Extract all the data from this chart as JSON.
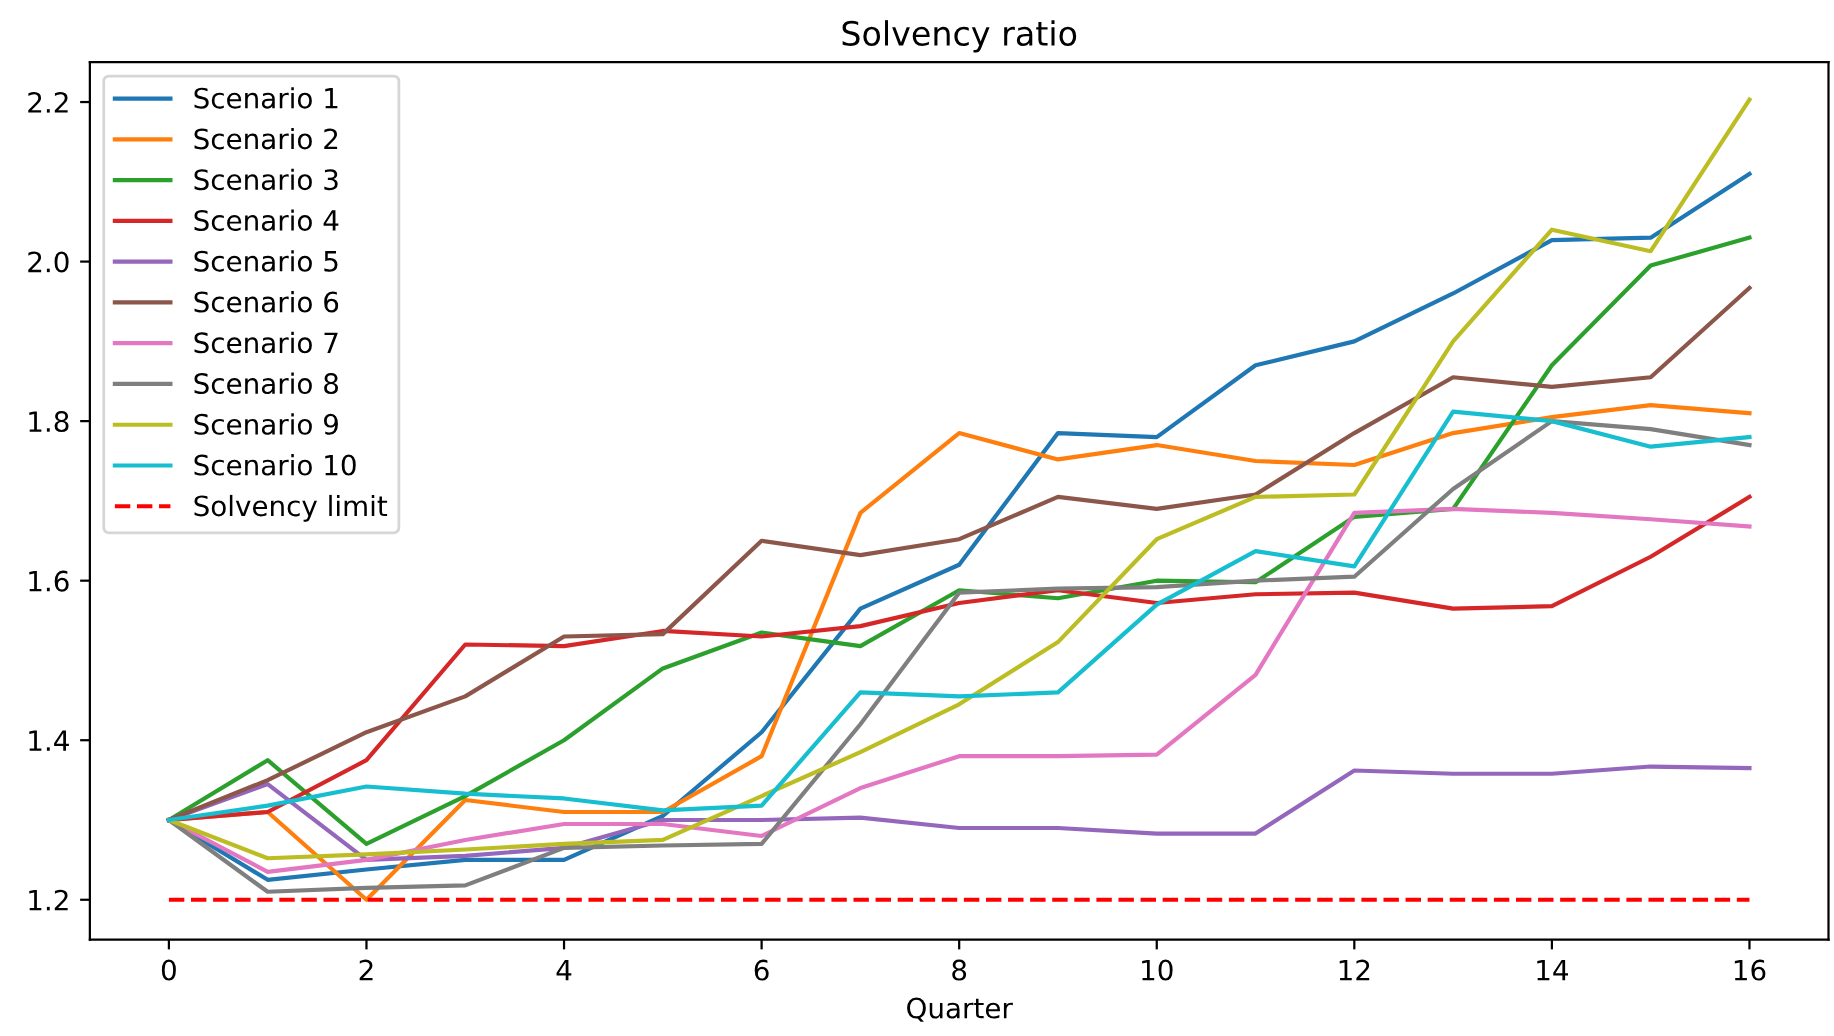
{
  "chart_data": {
    "type": "line",
    "title": "Solvency ratio",
    "xlabel": "Quarter",
    "x": [
      0,
      1,
      2,
      3,
      4,
      5,
      6,
      7,
      8,
      9,
      10,
      11,
      12,
      13,
      14,
      15,
      16
    ],
    "series": [
      {
        "name": "Scenario 1",
        "color": "#1f77b4",
        "values": [
          1.3,
          1.225,
          1.238,
          1.25,
          1.25,
          1.305,
          1.41,
          1.565,
          1.62,
          1.785,
          1.78,
          1.87,
          1.9,
          1.96,
          2.027,
          2.03,
          2.11
        ]
      },
      {
        "name": "Scenario 2",
        "color": "#ff7f0e",
        "values": [
          1.3,
          1.31,
          1.2,
          1.325,
          1.31,
          1.31,
          1.38,
          1.685,
          1.785,
          1.752,
          1.77,
          1.75,
          1.745,
          1.785,
          1.805,
          1.82,
          1.81
        ]
      },
      {
        "name": "Scenario 3",
        "color": "#2ca02c",
        "values": [
          1.3,
          1.375,
          1.27,
          1.33,
          1.4,
          1.49,
          1.535,
          1.518,
          1.588,
          1.578,
          1.6,
          1.598,
          1.68,
          1.69,
          1.87,
          1.995,
          2.03
        ]
      },
      {
        "name": "Scenario 4",
        "color": "#d62728",
        "values": [
          1.3,
          1.31,
          1.375,
          1.52,
          1.518,
          1.537,
          1.53,
          1.543,
          1.572,
          1.588,
          1.572,
          1.583,
          1.585,
          1.565,
          1.568,
          1.63,
          1.705
        ]
      },
      {
        "name": "Scenario 5",
        "color": "#9467bd",
        "values": [
          1.3,
          1.345,
          1.25,
          1.255,
          1.265,
          1.3,
          1.3,
          1.303,
          1.29,
          1.29,
          1.283,
          1.283,
          1.362,
          1.358,
          1.358,
          1.367,
          1.365
        ]
      },
      {
        "name": "Scenario 6",
        "color": "#8c564b",
        "values": [
          1.3,
          1.35,
          1.41,
          1.455,
          1.53,
          1.533,
          1.65,
          1.632,
          1.652,
          1.705,
          1.69,
          1.708,
          1.785,
          1.855,
          1.843,
          1.855,
          1.967
        ]
      },
      {
        "name": "Scenario 7",
        "color": "#e377c2",
        "values": [
          1.3,
          1.235,
          1.25,
          1.275,
          1.295,
          1.295,
          1.28,
          1.34,
          1.38,
          1.38,
          1.382,
          1.482,
          1.685,
          1.69,
          1.685,
          1.677,
          1.668
        ]
      },
      {
        "name": "Scenario 8",
        "color": "#7f7f7f",
        "values": [
          1.3,
          1.21,
          1.215,
          1.218,
          1.265,
          1.268,
          1.27,
          1.42,
          1.585,
          1.59,
          1.592,
          1.6,
          1.605,
          1.715,
          1.8,
          1.79,
          1.77
        ]
      },
      {
        "name": "Scenario 9",
        "color": "#bcbd22",
        "values": [
          1.3,
          1.252,
          1.257,
          1.263,
          1.27,
          1.275,
          1.33,
          1.385,
          1.445,
          1.523,
          1.652,
          1.705,
          1.708,
          1.9,
          2.04,
          2.013,
          2.203
        ]
      },
      {
        "name": "Scenario 10",
        "color": "#17becf",
        "values": [
          1.3,
          1.318,
          1.342,
          1.333,
          1.327,
          1.312,
          1.318,
          1.46,
          1.455,
          1.46,
          1.57,
          1.637,
          1.618,
          1.812,
          1.8,
          1.768,
          1.78
        ]
      }
    ],
    "ref_lines": [
      {
        "axis": "y",
        "value": 1.2,
        "label": "Solvency limit",
        "color": "#ff0000",
        "line_style": "dashed"
      }
    ],
    "xlim": [
      -0.8,
      16.8
    ],
    "ylim": [
      1.15,
      2.25
    ],
    "xticks": [
      0,
      2,
      4,
      6,
      8,
      10,
      12,
      14,
      16
    ],
    "yticks": [
      1.2,
      1.4,
      1.6,
      1.8,
      {
        "value": 2.0,
        "label": "2.0"
      },
      2.2
    ],
    "legend": "top left",
    "grid": false,
    "marker": "none",
    "line_style": "solid"
  }
}
